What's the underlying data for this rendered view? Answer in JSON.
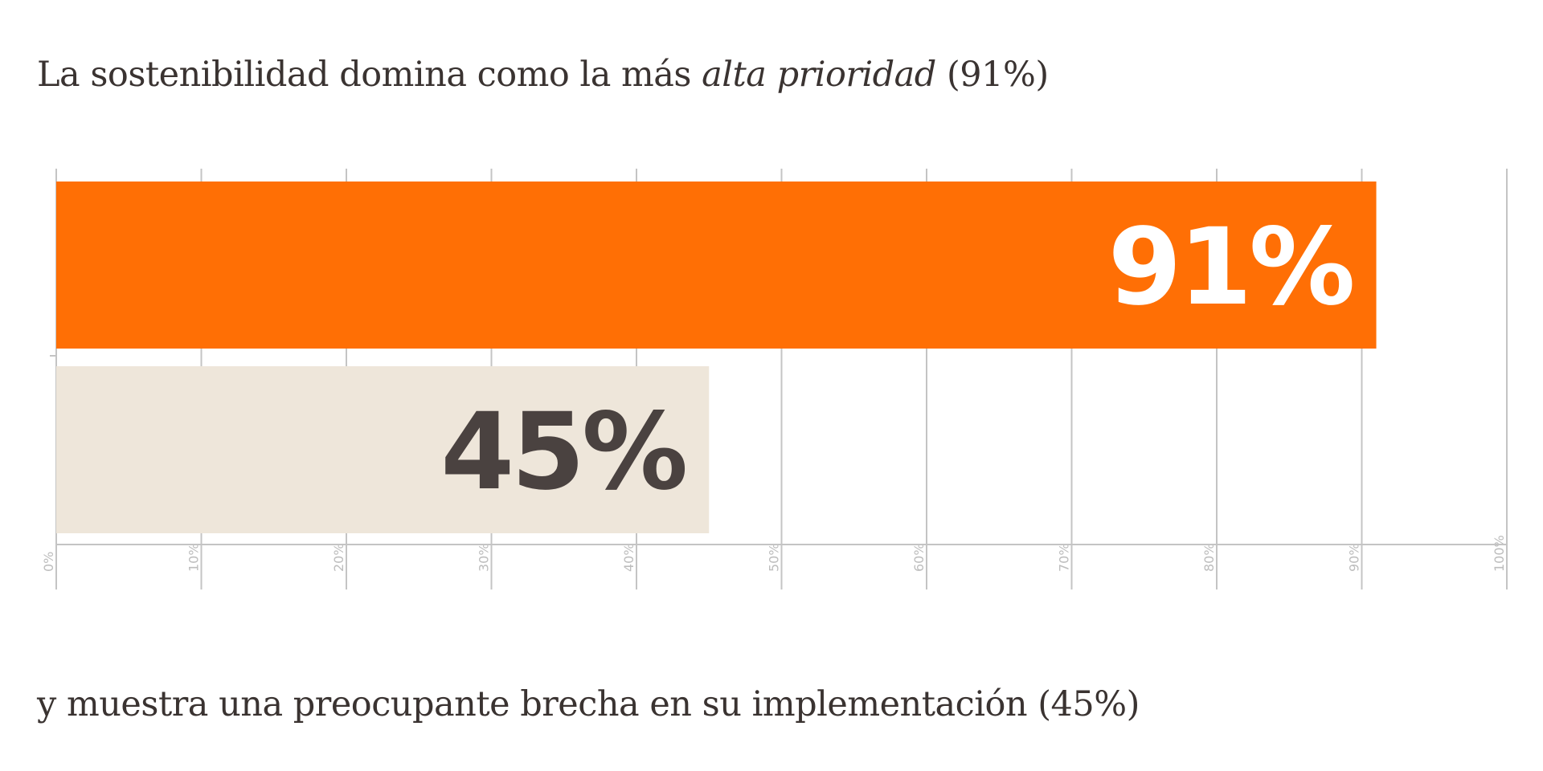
{
  "headline_top": {
    "prefix": "La sostenibilidad domina como la más ",
    "emphasis": "alta prioridad",
    "suffix": " (91%)"
  },
  "headline_bottom": "y muestra una preocupante brecha en su implementación (45%)",
  "colors": {
    "bar_priority": "#ff6f05",
    "bar_implementation": "#eee6da",
    "label_priority": "#ffffff",
    "label_implementation": "#4a4240",
    "grid": "#c4c4c4",
    "tick_text": "#bdbdbd"
  },
  "chart_data": {
    "type": "bar",
    "orientation": "horizontal",
    "categories": [
      "",
      ""
    ],
    "values": [
      91,
      45
    ],
    "data_labels": [
      "91%",
      "45%"
    ],
    "xlim": [
      0,
      100
    ],
    "xticks": [
      0,
      10,
      20,
      30,
      40,
      50,
      60,
      70,
      80,
      90,
      100
    ],
    "xtick_labels": [
      "0%",
      "10%",
      "20%",
      "30%",
      "40%",
      "50%",
      "60%",
      "70%",
      "80%",
      "90%",
      "100%"
    ],
    "grid": true,
    "title": "",
    "xlabel": "",
    "ylabel": ""
  }
}
